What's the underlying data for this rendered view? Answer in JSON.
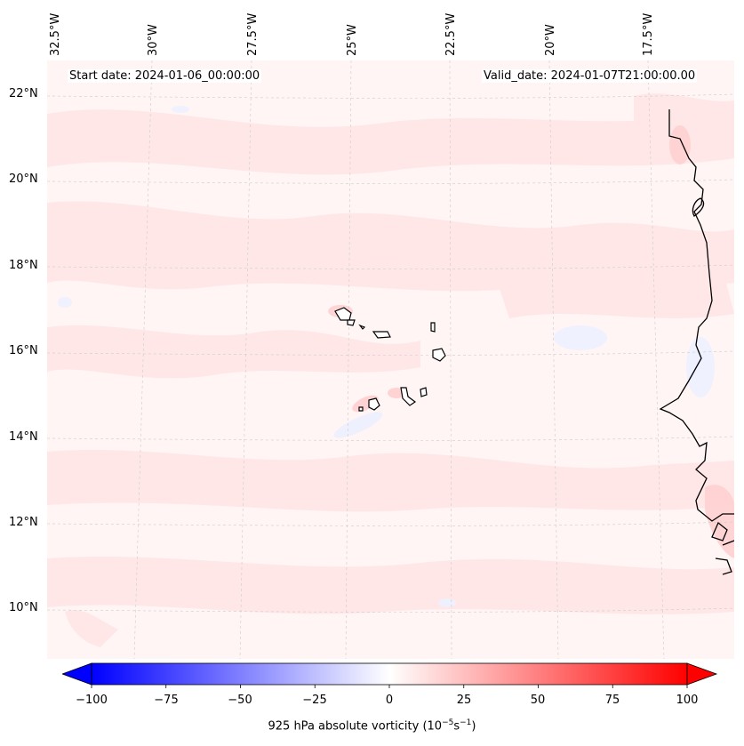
{
  "map": {
    "start_date": "Start date: 2024-01-06_00:00:00",
    "valid_date": "Valid_date: 2024-01-07T21:00:00.00",
    "lon_labels": [
      "32.5°W",
      "30°W",
      "27.5°W",
      "25°W",
      "22.5°W",
      "20°W",
      "17.5°W"
    ],
    "lat_labels": [
      "22°N",
      "20°N",
      "18°N",
      "16°N",
      "14°N",
      "12°N",
      "10°N"
    ],
    "field_colors": {
      "base": "#fff5f5",
      "light_red": "#ffe4e4",
      "mid_red": "#ffcfcf",
      "light_blue": "#eef0ff",
      "blue": "#d6dcff",
      "coast": "#000000"
    }
  },
  "colorbar": {
    "ticks": [
      "−100",
      "−75",
      "−50",
      "−25",
      "0",
      "25",
      "50",
      "75",
      "100"
    ],
    "title": "925 hPa absolute vorticity (10",
    "title_exp1": "−5",
    "title_mid": "s",
    "title_exp2": "−1",
    "title_end": ")",
    "range": [
      -100,
      100
    ],
    "low_color": "#0000ff",
    "mid_color": "#ffffff",
    "high_color": "#ff0000"
  }
}
